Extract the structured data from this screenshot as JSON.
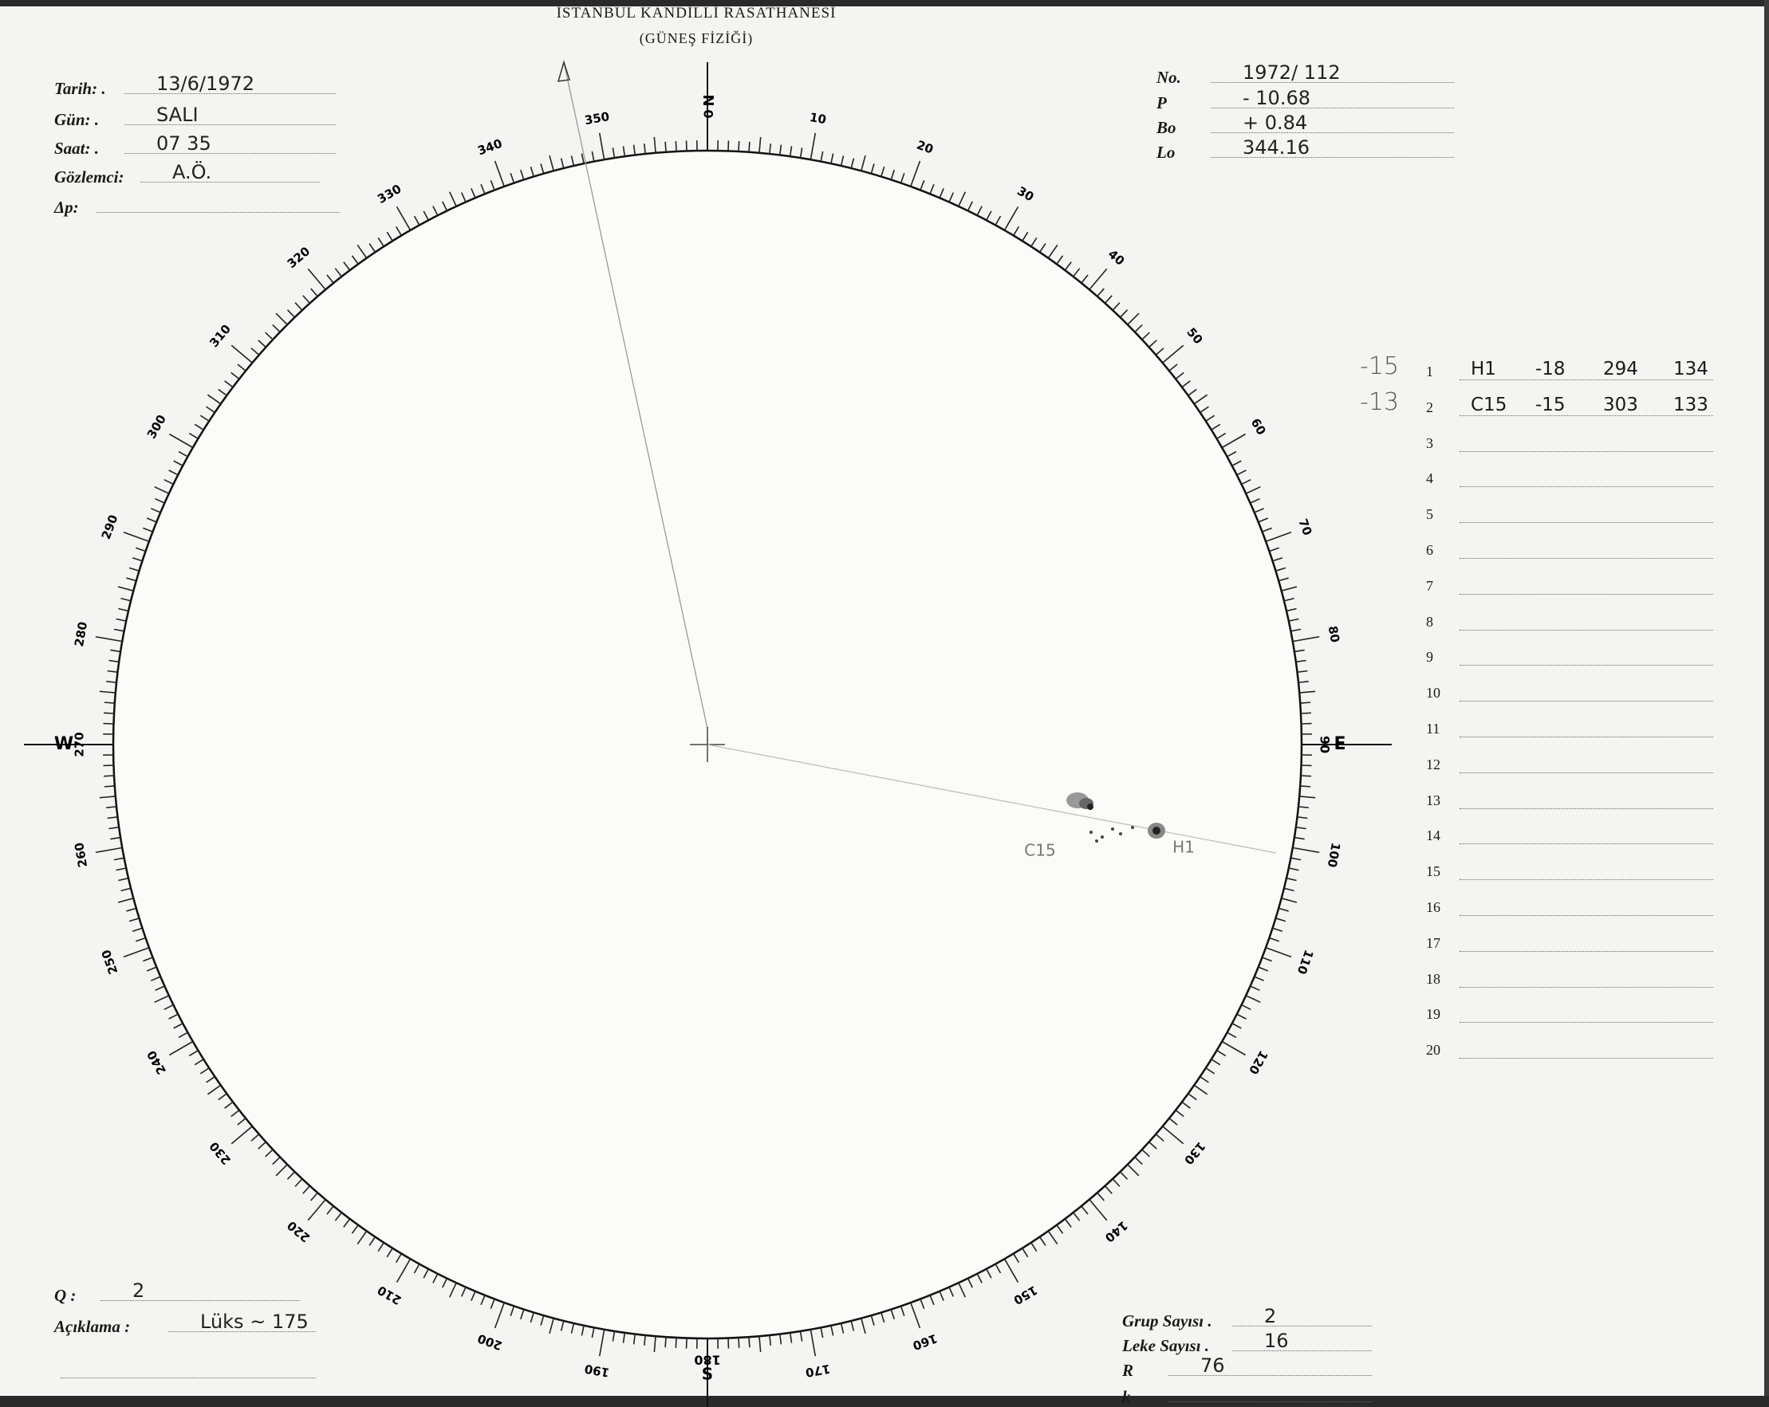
{
  "header": {
    "title": "İSTANBUL KANDİLLİ RASATHANESİ",
    "subtitle": "(GÜNEŞ FİZİĞİ)"
  },
  "left_fields": [
    {
      "label": "Tarih: .",
      "value": "13/6/1972"
    },
    {
      "label": "Gün: .",
      "value": "SALI"
    },
    {
      "label": "Saat: .",
      "value": "07 35"
    },
    {
      "label": "Gözlemci:",
      "value": "A.Ö."
    },
    {
      "label": "Δp:",
      "value": ""
    }
  ],
  "right_fields": [
    {
      "label": "No.",
      "value": "1972/ 112"
    },
    {
      "label": "P",
      "value": "- 10.68"
    },
    {
      "label": "Bo",
      "value": "+ 0.84"
    },
    {
      "label": "Lo",
      "value": "344.16"
    }
  ],
  "groups": {
    "rows": [
      {
        "no": "1",
        "side_note": "-15",
        "name": "H1",
        "lat": "-18",
        "lon": "294",
        "cmd": "134"
      },
      {
        "no": "2",
        "side_note": "-13",
        "name": "C15",
        "lat": "-15",
        "lon": "303",
        "cmd": "133"
      },
      {
        "no": "3"
      },
      {
        "no": "4"
      },
      {
        "no": "5"
      },
      {
        "no": "6"
      },
      {
        "no": "7"
      },
      {
        "no": "8"
      },
      {
        "no": "9"
      },
      {
        "no": "10"
      },
      {
        "no": "11"
      },
      {
        "no": "12"
      },
      {
        "no": "13"
      },
      {
        "no": "14"
      },
      {
        "no": "15"
      },
      {
        "no": "16"
      },
      {
        "no": "17"
      },
      {
        "no": "18"
      },
      {
        "no": "19"
      },
      {
        "no": "20"
      }
    ]
  },
  "disk": {
    "north_label": "N",
    "south_label": "S",
    "east_label": "E",
    "west_label": "W",
    "scale_labels": [
      "0",
      "10",
      "20",
      "30",
      "40",
      "50",
      "60",
      "70",
      "80",
      "90",
      "100",
      "110",
      "120",
      "130",
      "140",
      "150",
      "160",
      "170",
      "180",
      "190",
      "200",
      "210",
      "220",
      "230",
      "240",
      "250",
      "260",
      "270",
      "280",
      "290",
      "300",
      "310",
      "320",
      "330",
      "340",
      "350"
    ],
    "spot_labels": [
      "C15",
      "H1"
    ]
  },
  "bottom_left": [
    {
      "label": "Q :",
      "value": "2"
    },
    {
      "label": "Açıklama :",
      "value": "Lüks ~ 175"
    },
    {
      "label": "",
      "value": ""
    }
  ],
  "bottom_right": [
    {
      "label": "Grup Sayısı .",
      "value": "2"
    },
    {
      "label": "Leke Sayısı .",
      "value": "16"
    },
    {
      "label": "R",
      "value": "76"
    },
    {
      "label": "k",
      "value": ""
    }
  ]
}
